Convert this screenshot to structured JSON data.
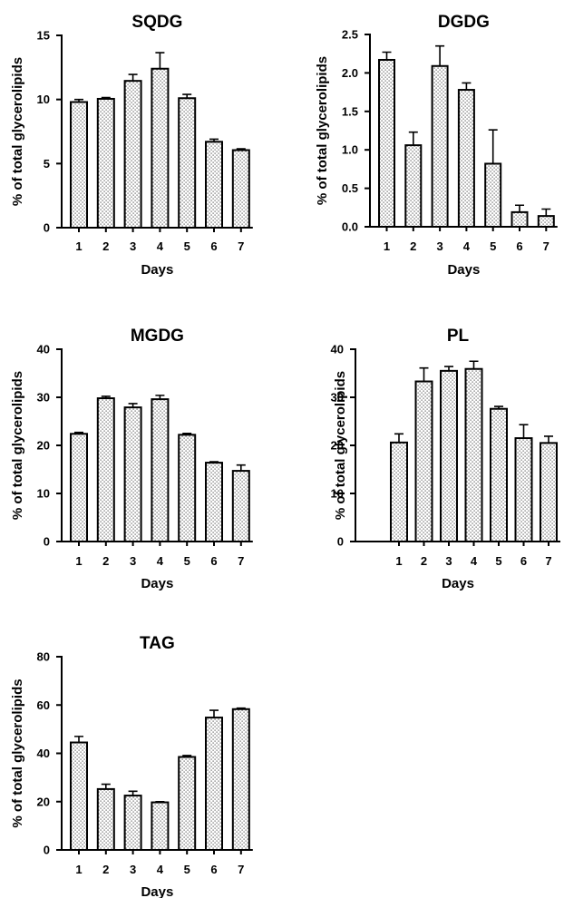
{
  "chart_data": [
    {
      "type": "bar",
      "title": "SQDG",
      "xlabel": "Days",
      "ylabel": "% of total glycerolipids",
      "categories": [
        "1",
        "2",
        "3",
        "4",
        "5",
        "6",
        "7"
      ],
      "values": [
        9.8,
        10.05,
        11.45,
        12.4,
        10.1,
        6.7,
        6.05
      ],
      "errors": [
        0.2,
        0.1,
        0.5,
        1.25,
        0.3,
        0.2,
        0.1
      ],
      "ylim": [
        0,
        15
      ],
      "yticks": [
        "0",
        "5",
        "10",
        "15"
      ],
      "ytick_values": [
        0,
        5,
        10,
        15
      ],
      "grid": false
    },
    {
      "type": "bar",
      "title": "DGDG",
      "xlabel": "Days",
      "ylabel": "% of total glycerolipids",
      "categories": [
        "1",
        "2",
        "3",
        "4",
        "5",
        "6",
        "7"
      ],
      "values": [
        2.17,
        1.06,
        2.09,
        1.78,
        0.82,
        0.19,
        0.14
      ],
      "errors": [
        0.1,
        0.17,
        0.26,
        0.09,
        0.44,
        0.09,
        0.09
      ],
      "ylim": [
        0,
        2.5
      ],
      "yticks": [
        "0.0",
        "0.5",
        "1.0",
        "1.5",
        "2.0",
        "2.5"
      ],
      "ytick_values": [
        0,
        0.5,
        1.0,
        1.5,
        2.0,
        2.5
      ],
      "grid": false
    },
    {
      "type": "bar",
      "title": "MGDG",
      "xlabel": "Days",
      "ylabel": "% of total glycerolipids",
      "categories": [
        "1",
        "2",
        "3",
        "4",
        "5",
        "6",
        "7"
      ],
      "values": [
        22.4,
        29.8,
        27.9,
        29.6,
        22.2,
        16.4,
        14.7
      ],
      "errors": [
        0.3,
        0.4,
        0.8,
        0.8,
        0.3,
        0.2,
        1.2
      ],
      "ylim": [
        0,
        40
      ],
      "yticks": [
        "0",
        "10",
        "20",
        "30",
        "40"
      ],
      "ytick_values": [
        0,
        10,
        20,
        30,
        40
      ],
      "grid": false
    },
    {
      "type": "bar",
      "title": "PL",
      "xlabel": "Days",
      "ylabel": "% of total glycerolipids",
      "categories": [
        "1",
        "2",
        "3",
        "4",
        "5",
        "6",
        "7"
      ],
      "values": [
        20.6,
        33.3,
        35.5,
        35.9,
        27.6,
        21.5,
        20.5
      ],
      "errors": [
        1.8,
        2.8,
        0.9,
        1.6,
        0.5,
        2.8,
        1.4
      ],
      "ylim": [
        0,
        40
      ],
      "yticks": [
        "0",
        "10",
        "20",
        "30",
        "40"
      ],
      "ytick_values": [
        0,
        10,
        20,
        30,
        40
      ],
      "grid": false
    },
    {
      "type": "bar",
      "title": "TAG",
      "xlabel": "Days",
      "ylabel": "% of total glycerolipids",
      "categories": [
        "1",
        "2",
        "3",
        "4",
        "5",
        "6",
        "7"
      ],
      "values": [
        44.5,
        25.2,
        22.5,
        19.7,
        38.5,
        54.8,
        58.3
      ],
      "errors": [
        2.5,
        2.0,
        1.8,
        0.3,
        0.6,
        3.0,
        0.4
      ],
      "ylim": [
        0,
        80
      ],
      "yticks": [
        "0",
        "20",
        "40",
        "60",
        "80"
      ],
      "ytick_values": [
        0,
        20,
        40,
        60,
        80
      ],
      "grid": false
    }
  ]
}
